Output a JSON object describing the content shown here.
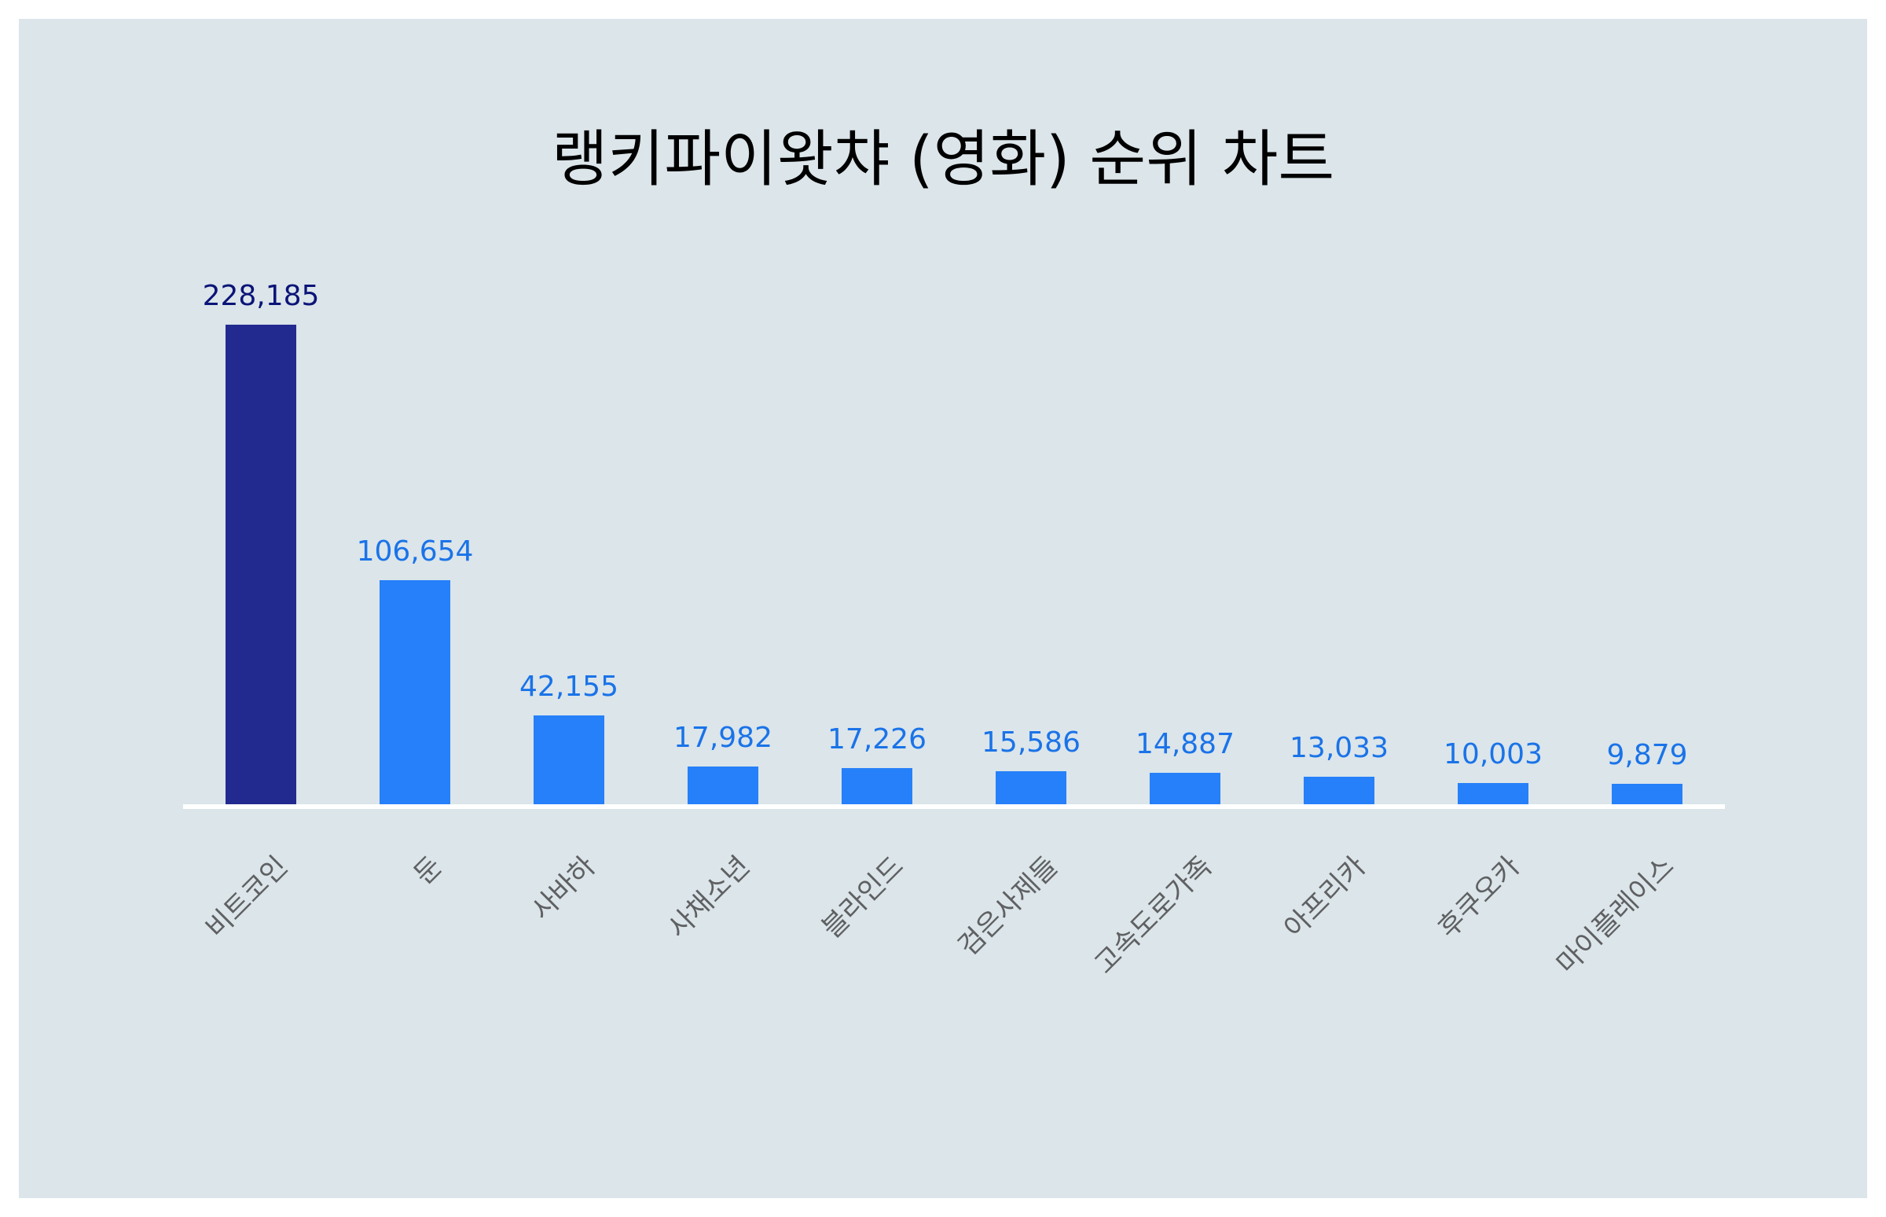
{
  "title": "랭키파이왓챠 (영화) 순위 차트",
  "colors": {
    "background": "#dbe5ea",
    "highlight_bar": "#222a8f",
    "highlight_label": "#0b1477",
    "bar": "#2680f9",
    "bar_label": "#1a73e8",
    "axis_label": "#5f6062",
    "axis_line": "#ffffff"
  },
  "chart_data": {
    "type": "bar",
    "title": "랭키파이왓챠 (영화) 순위 차트",
    "xlabel": "",
    "ylabel": "",
    "categories": [
      "비트코인",
      "둔",
      "사바하",
      "사채소년",
      "블라인드",
      "검은사제들",
      "고속도로가족",
      "아프리카",
      "후쿠오카",
      "마이플레이스"
    ],
    "values": [
      228185,
      106654,
      42155,
      17982,
      17226,
      15586,
      14887,
      13033,
      10003,
      9879
    ],
    "value_labels": [
      "228,185",
      "106,654",
      "42,155",
      "17,982",
      "17,226",
      "15,586",
      "14,887",
      "13,033",
      "10,003",
      "9,879"
    ],
    "highlight_index": 0,
    "ylim": [
      0,
      228185
    ],
    "grid": false,
    "legend": null,
    "x_tick_rotation": -45
  }
}
